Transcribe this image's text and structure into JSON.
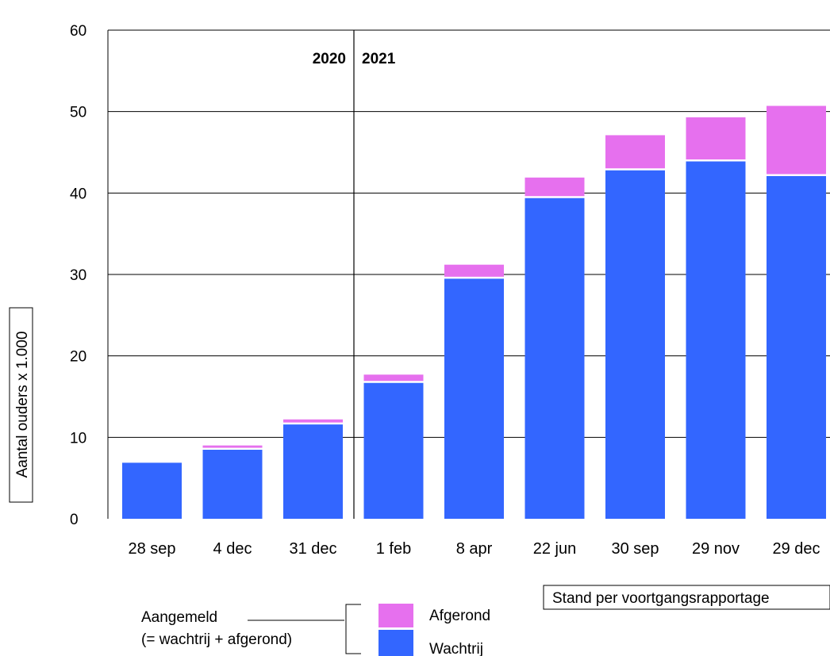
{
  "chart_data": {
    "type": "bar",
    "stacked": true,
    "ylabel": "Aantal ouders x 1.000",
    "ylim": [
      0,
      60
    ],
    "yticks": [
      0,
      10,
      20,
      30,
      40,
      50,
      60
    ],
    "grid": true,
    "categories": [
      "28 sep",
      "4 dec",
      "31 dec",
      "1 feb",
      "8 apr",
      "22 jun",
      "30 sep",
      "29 nov",
      "29 dec"
    ],
    "year_labels": [
      {
        "label": "2020",
        "after_category": "31 dec"
      },
      {
        "label": "2021",
        "before_category": "1 feb"
      }
    ],
    "series": [
      {
        "name": "Wachtrij",
        "color": "#3366ff",
        "values": [
          7.0,
          8.6,
          11.7,
          16.8,
          29.6,
          39.5,
          42.9,
          44.0,
          42.2
        ]
      },
      {
        "name": "Afgerond",
        "color": "#e670ee",
        "values": [
          0.1,
          0.4,
          0.5,
          0.9,
          1.6,
          2.4,
          4.2,
          5.3,
          8.5
        ]
      }
    ],
    "legend": {
      "placement": "bottom-center",
      "group_label_line1": "Aangemeld",
      "group_label_line2": "(= wachtrij + afgerond)"
    },
    "note": "Stand per voortgangsrapportage"
  }
}
